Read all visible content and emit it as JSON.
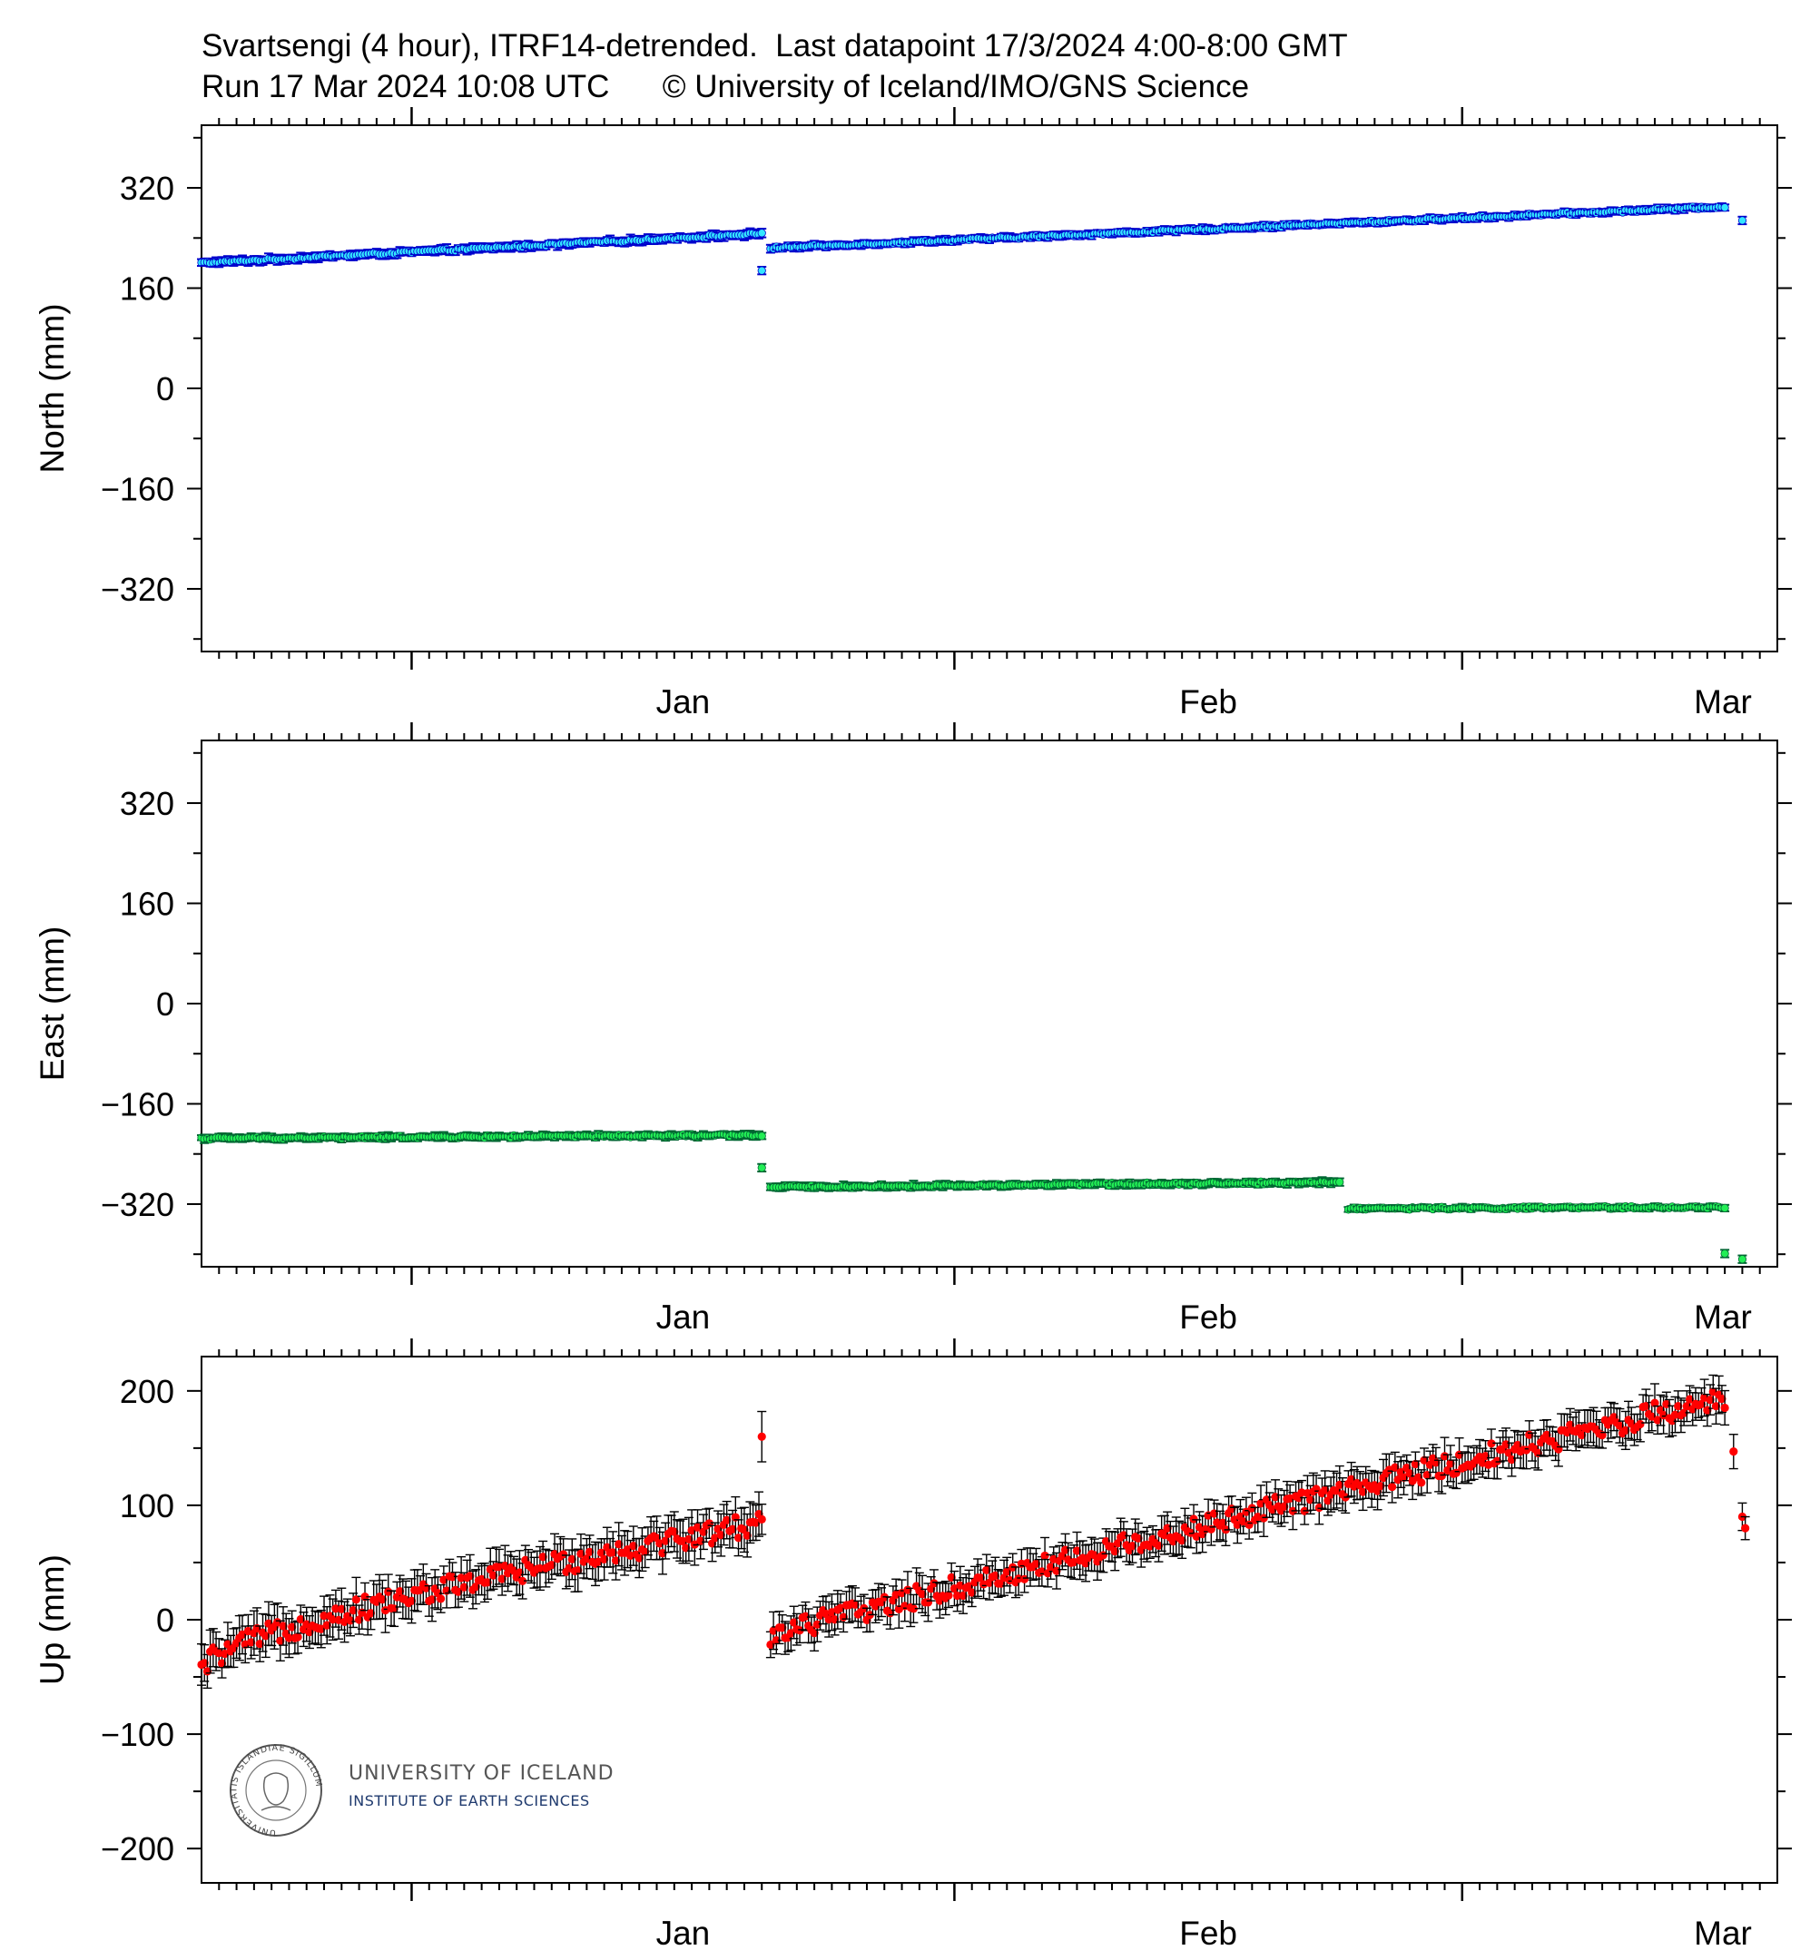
{
  "header": {
    "title_line1": "Svartsengi (4 hour), ITRF14-detrended.  Last datapoint 17/3/2024 4:00-8:00 GMT",
    "title_line2": "Run 17 Mar 2024 10:08 UTC      © University of Iceland/IMO/GNS Science"
  },
  "logo": {
    "line1": "UNIVERSITY OF ICELAND",
    "line2": "INSTITUTE OF EARTH SCIENCES",
    "seal_text": "UNIVERSITATIS ISLANDIAE SIGILLUM"
  },
  "chart_data": [
    {
      "type": "scatter",
      "ylabel": "North (mm)",
      "ylim": [
        -420,
        420
      ],
      "yticks": [
        320,
        160,
        0,
        -160,
        -320
      ],
      "ytick_labels": [
        "320",
        "160",
        "0",
        "−160",
        "−320"
      ],
      "x_axis": {
        "type": "date",
        "start": "2023-12-20",
        "end": "2024-03-19",
        "month_ticks": [
          "2024-01-01",
          "2024-02-01",
          "2024-03-01"
        ],
        "month_labels": [
          "Jan",
          "Feb",
          "Mar"
        ]
      },
      "series": [
        {
          "marker_color": "#33e6ff",
          "error_color": "#0000cc",
          "segments": [
            {
              "x_start": "2023-12-20",
              "x_end": "2024-01-21",
              "y_start": 200,
              "y_end": 247,
              "error": 6
            },
            {
              "x_start": "2024-01-21T12:00",
              "x_end": "2024-03-16",
              "y_start": 224,
              "y_end": 290,
              "error": 5
            }
          ],
          "outliers": [
            {
              "x": "2024-01-21",
              "y": 188,
              "error": 6
            },
            {
              "x": "2024-03-17",
              "y": 268,
              "error": 6
            }
          ]
        }
      ]
    },
    {
      "type": "scatter",
      "ylabel": "East (mm)",
      "ylim": [
        -420,
        420
      ],
      "yticks": [
        320,
        160,
        0,
        -160,
        -320
      ],
      "ytick_labels": [
        "320",
        "160",
        "0",
        "−160",
        "−320"
      ],
      "x_axis": {
        "type": "date",
        "start": "2023-12-20",
        "end": "2024-03-19",
        "month_ticks": [
          "2024-01-01",
          "2024-02-01",
          "2024-03-01"
        ],
        "month_labels": [
          "Jan",
          "Feb",
          "Mar"
        ]
      },
      "series": [
        {
          "marker_color": "#22ee55",
          "error_color": "#006633",
          "segments": [
            {
              "x_start": "2023-12-20",
              "x_end": "2024-01-21",
              "y_start": -215,
              "y_end": -210,
              "error": 5
            },
            {
              "x_start": "2024-01-21T12:00",
              "x_end": "2024-02-23",
              "y_start": -293,
              "y_end": -285,
              "error": 5
            },
            {
              "x_start": "2024-02-23T12:00",
              "x_end": "2024-03-16",
              "y_start": -327,
              "y_end": -325,
              "error": 4
            }
          ],
          "outliers": [
            {
              "x": "2024-01-21",
              "y": -262,
              "error": 6
            },
            {
              "x": "2024-03-16",
              "y": -399,
              "error": 6
            },
            {
              "x": "2024-03-17",
              "y": -408,
              "error": 6
            }
          ]
        }
      ]
    },
    {
      "type": "scatter",
      "ylabel": "Up (mm)",
      "ylim": [
        -230,
        230
      ],
      "yticks": [
        200,
        100,
        0,
        -100,
        -200
      ],
      "ytick_labels": [
        "200",
        "100",
        "0",
        "−100",
        "−200"
      ],
      "x_axis": {
        "type": "date",
        "start": "2023-12-20",
        "end": "2024-03-19",
        "month_ticks": [
          "2024-01-01",
          "2024-02-01",
          "2024-03-01"
        ],
        "month_labels": [
          "Jan",
          "Feb",
          "Mar"
        ]
      },
      "series": [
        {
          "marker_color": "#ff0000",
          "error_color": "#000000",
          "segments": [
            {
              "x_start": "2023-12-20",
              "x_end": "2024-01-21",
              "y_start": -45,
              "y_end": 85,
              "error": 15,
              "scatter": 10,
              "curve": "sqrt"
            },
            {
              "x_start": "2024-01-21T12:00",
              "x_end": "2024-03-16",
              "y_start": -12,
              "y_end": 195,
              "error": 13,
              "scatter": 10,
              "curve": "linear"
            }
          ],
          "outliers": [
            {
              "x": "2024-01-21",
              "y": 160,
              "error": 22
            },
            {
              "x": "2024-03-16T12:00",
              "y": 147,
              "error": 15
            },
            {
              "x": "2024-03-17",
              "y": 90,
              "error": 12
            },
            {
              "x": "2024-03-17T04:00",
              "y": 80,
              "error": 10
            }
          ]
        }
      ]
    }
  ]
}
